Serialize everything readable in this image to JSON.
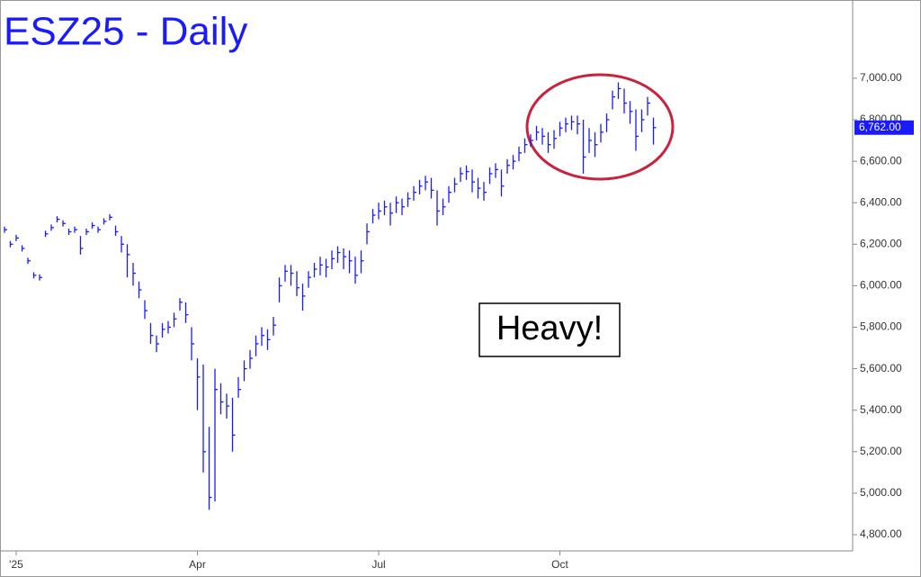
{
  "chart_data": {
    "type": "ohlc",
    "title": "ESZ25 - Daily",
    "annotation": "Heavy!",
    "color": "#1a1aff",
    "categories": [
      null,
      null,
      "'25",
      null,
      null,
      null,
      null,
      null,
      null,
      null,
      null,
      null,
      null,
      null,
      null,
      null,
      null,
      null,
      null,
      null,
      null,
      null,
      null,
      null,
      null,
      null,
      null,
      null,
      null,
      null,
      null,
      null,
      null,
      "Apr",
      null,
      null,
      null,
      null,
      null,
      null,
      null,
      null,
      null,
      null,
      null,
      null,
      null,
      null,
      null,
      null,
      null,
      null,
      null,
      null,
      null,
      null,
      null,
      null,
      null,
      null,
      null,
      null,
      null,
      null,
      "Jul",
      null,
      null,
      null,
      null,
      null,
      null,
      null,
      null,
      null,
      null,
      null,
      null,
      null,
      null,
      null,
      null,
      null,
      null,
      null,
      null,
      null,
      null,
      null,
      null,
      null,
      null,
      null,
      null,
      null,
      null,
      "Oct",
      null,
      null,
      null,
      null,
      null,
      null,
      null,
      null,
      null,
      null,
      null,
      null,
      null,
      null,
      null,
      null
    ],
    "high": [
      6285,
      6215,
      6245,
      6195,
      6135,
      6065,
      6055,
      6265,
      6295,
      6335,
      6315,
      6275,
      6285,
      6240,
      6275,
      6305,
      6285,
      6325,
      6345,
      6290,
      6240,
      6200,
      6110,
      6020,
      5930,
      5820,
      5760,
      5820,
      5830,
      5870,
      5940,
      5920,
      5800,
      5650,
      5620,
      5320,
      5600,
      5530,
      5480,
      5460,
      5560,
      5640,
      5690,
      5760,
      5800,
      5790,
      5850,
      6040,
      6100,
      6100,
      6070,
      6010,
      6070,
      6110,
      6140,
      6130,
      6170,
      6190,
      6180,
      6170,
      6140,
      6170,
      6300,
      6370,
      6400,
      6410,
      6400,
      6430,
      6420,
      6450,
      6480,
      6510,
      6530,
      6520,
      6460,
      6420,
      6480,
      6520,
      6570,
      6580,
      6560,
      6520,
      6500,
      6570,
      6590,
      6560,
      6610,
      6630,
      6670,
      6710,
      6730,
      6770,
      6760,
      6740,
      6750,
      6790,
      6810,
      6820,
      6820,
      6800,
      6760,
      6740,
      6780,
      6830,
      6940,
      6980,
      6950,
      6890,
      6850,
      6850,
      6910,
      6810
    ],
    "low": [
      6255,
      6185,
      6215,
      6165,
      6105,
      6035,
      6025,
      6235,
      6265,
      6305,
      6285,
      6245,
      6255,
      6150,
      6245,
      6275,
      6255,
      6295,
      6315,
      6240,
      6160,
      6040,
      6000,
      5940,
      5840,
      5720,
      5680,
      5750,
      5770,
      5800,
      5880,
      5820,
      5640,
      5400,
      5100,
      4920,
      4960,
      5380,
      5360,
      5200,
      5460,
      5540,
      5600,
      5660,
      5710,
      5690,
      5760,
      5920,
      6020,
      6000,
      5950,
      5880,
      5990,
      6040,
      6050,
      6040,
      6080,
      6110,
      6080,
      6060,
      6010,
      6060,
      6200,
      6300,
      6320,
      6340,
      6290,
      6350,
      6340,
      6380,
      6410,
      6440,
      6460,
      6420,
      6290,
      6340,
      6400,
      6450,
      6500,
      6510,
      6450,
      6420,
      6410,
      6490,
      6520,
      6430,
      6540,
      6560,
      6600,
      6640,
      6670,
      6700,
      6680,
      6640,
      6660,
      6720,
      6740,
      6750,
      6730,
      6540,
      6640,
      6620,
      6690,
      6740,
      6850,
      6900,
      6830,
      6780,
      6650,
      6740,
      6820,
      6680
    ],
    "close": [
      6270,
      6200,
      6230,
      6180,
      6120,
      6050,
      6040,
      6250,
      6280,
      6320,
      6300,
      6260,
      6270,
      6180,
      6260,
      6290,
      6270,
      6310,
      6330,
      6260,
      6200,
      6150,
      6060,
      5980,
      5880,
      5760,
      5720,
      5790,
      5800,
      5840,
      5920,
      5860,
      5720,
      5560,
      5200,
      4980,
      5500,
      5440,
      5420,
      5280,
      5500,
      5600,
      5650,
      5720,
      5760,
      5740,
      5810,
      6000,
      6070,
      6060,
      5990,
      5950,
      6040,
      6080,
      6100,
      6090,
      6130,
      6160,
      6140,
      6120,
      6050,
      6120,
      6260,
      6340,
      6360,
      6380,
      6350,
      6400,
      6380,
      6420,
      6450,
      6480,
      6500,
      6460,
      6360,
      6380,
      6450,
      6490,
      6540,
      6550,
      6500,
      6470,
      6450,
      6540,
      6560,
      6480,
      6580,
      6600,
      6640,
      6680,
      6700,
      6740,
      6720,
      6680,
      6710,
      6760,
      6780,
      6790,
      6780,
      6620,
      6700,
      6680,
      6740,
      6800,
      6910,
      6950,
      6880,
      6840,
      6720,
      6800,
      6880,
      6762
    ],
    "last_price": {
      "value": 6762,
      "label": "6,762.00"
    },
    "ylim": [
      4722,
      7377
    ],
    "yticks": [
      {
        "value": 4800,
        "label": "4,800.00"
      },
      {
        "value": 5000,
        "label": "5,000.00"
      },
      {
        "value": 5200,
        "label": "5,200.00"
      },
      {
        "value": 5400,
        "label": "5,400.00"
      },
      {
        "value": 5600,
        "label": "5,600.00"
      },
      {
        "value": 5800,
        "label": "5,800.00"
      },
      {
        "value": 6000,
        "label": "6,000.00"
      },
      {
        "value": 6200,
        "label": "6,200.00"
      },
      {
        "value": 6400,
        "label": "6,400.00"
      },
      {
        "value": 6600,
        "label": "6,600.00"
      },
      {
        "value": 6800,
        "label": "6,800.00"
      },
      {
        "value": 7000,
        "label": "7,000.00"
      }
    ]
  }
}
